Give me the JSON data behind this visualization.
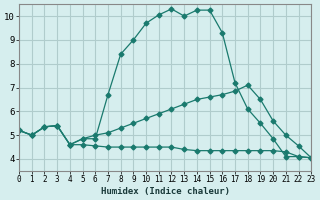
{
  "xlabel": "Humidex (Indice chaleur)",
  "bg_color": "#d6eeee",
  "grid_color": "#b0cccc",
  "line_color": "#1a7a6e",
  "xlim": [
    0,
    23
  ],
  "ylim": [
    3.5,
    10.5
  ],
  "xticks": [
    0,
    1,
    2,
    3,
    4,
    5,
    6,
    7,
    8,
    9,
    10,
    11,
    12,
    13,
    14,
    15,
    16,
    17,
    18,
    19,
    20,
    21,
    22,
    23
  ],
  "yticks": [
    4,
    5,
    6,
    7,
    8,
    9,
    10
  ],
  "series": [
    {
      "x": [
        0,
        1,
        2,
        3,
        4,
        5,
        6,
        7,
        8,
        9,
        10,
        11,
        12,
        13,
        14,
        15,
        16,
        17,
        18,
        19,
        20,
        21,
        22,
        23
      ],
      "y": [
        5.2,
        5.0,
        5.35,
        5.4,
        4.6,
        4.85,
        4.85,
        6.7,
        8.4,
        9.0,
        9.7,
        10.05,
        10.3,
        10.0,
        10.25,
        10.25,
        9.3,
        7.2,
        6.1,
        5.5,
        4.85,
        4.1,
        4.1,
        4.05
      ]
    },
    {
      "x": [
        0,
        1,
        2,
        3,
        4,
        5,
        6,
        7,
        8,
        9,
        10,
        11,
        12,
        13,
        14,
        15,
        16,
        17,
        18,
        19,
        20,
        21,
        22,
        23
      ],
      "y": [
        5.2,
        5.0,
        5.35,
        5.4,
        4.6,
        4.85,
        5.0,
        5.1,
        5.3,
        5.5,
        5.7,
        5.9,
        6.1,
        6.3,
        6.5,
        6.6,
        6.7,
        6.85,
        7.1,
        6.5,
        5.6,
        5.0,
        4.55,
        4.05
      ]
    },
    {
      "x": [
        0,
        1,
        2,
        3,
        4,
        5,
        6,
        7,
        8,
        9,
        10,
        11,
        12,
        13,
        14,
        15,
        16,
        17,
        18,
        19,
        20,
        21,
        22,
        23
      ],
      "y": [
        5.2,
        5.0,
        5.35,
        5.4,
        4.6,
        4.6,
        4.55,
        4.5,
        4.5,
        4.5,
        4.5,
        4.5,
        4.5,
        4.4,
        4.35,
        4.35,
        4.35,
        4.35,
        4.35,
        4.35,
        4.35,
        4.3,
        4.1,
        4.05
      ]
    }
  ]
}
